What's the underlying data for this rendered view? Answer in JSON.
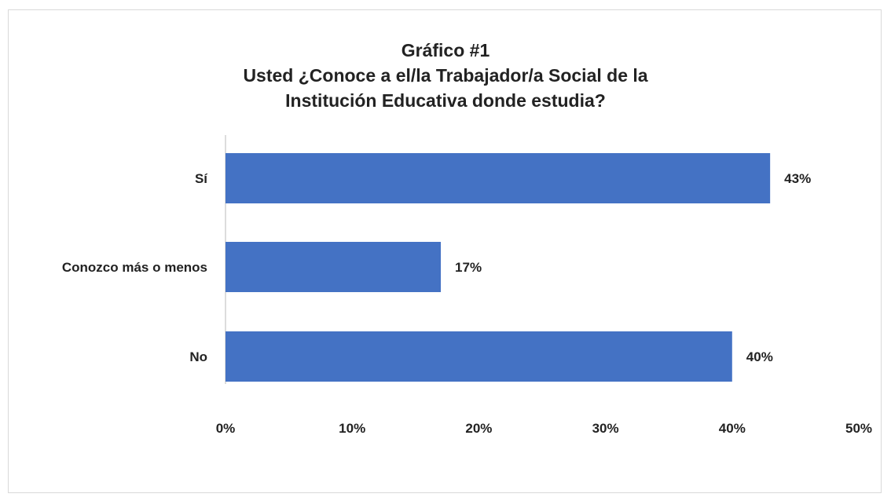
{
  "chart_data": {
    "type": "bar",
    "orientation": "horizontal",
    "title": [
      "Gráfico #1",
      "Usted ¿Conoce a el/la Trabajador/a Social de la",
      "Institución Educativa donde estudia?"
    ],
    "categories": [
      "Sí",
      "Conozco más o menos",
      "No"
    ],
    "values": [
      43,
      17,
      40
    ],
    "value_labels": [
      "43%",
      "17%",
      "40%"
    ],
    "xlim": [
      0,
      50
    ],
    "xticks": [
      "0%",
      "10%",
      "20%",
      "30%",
      "40%",
      "50%"
    ],
    "xlabel": "",
    "ylabel": "",
    "grid": false,
    "legend": "none",
    "bar_color": "#4472c4"
  }
}
